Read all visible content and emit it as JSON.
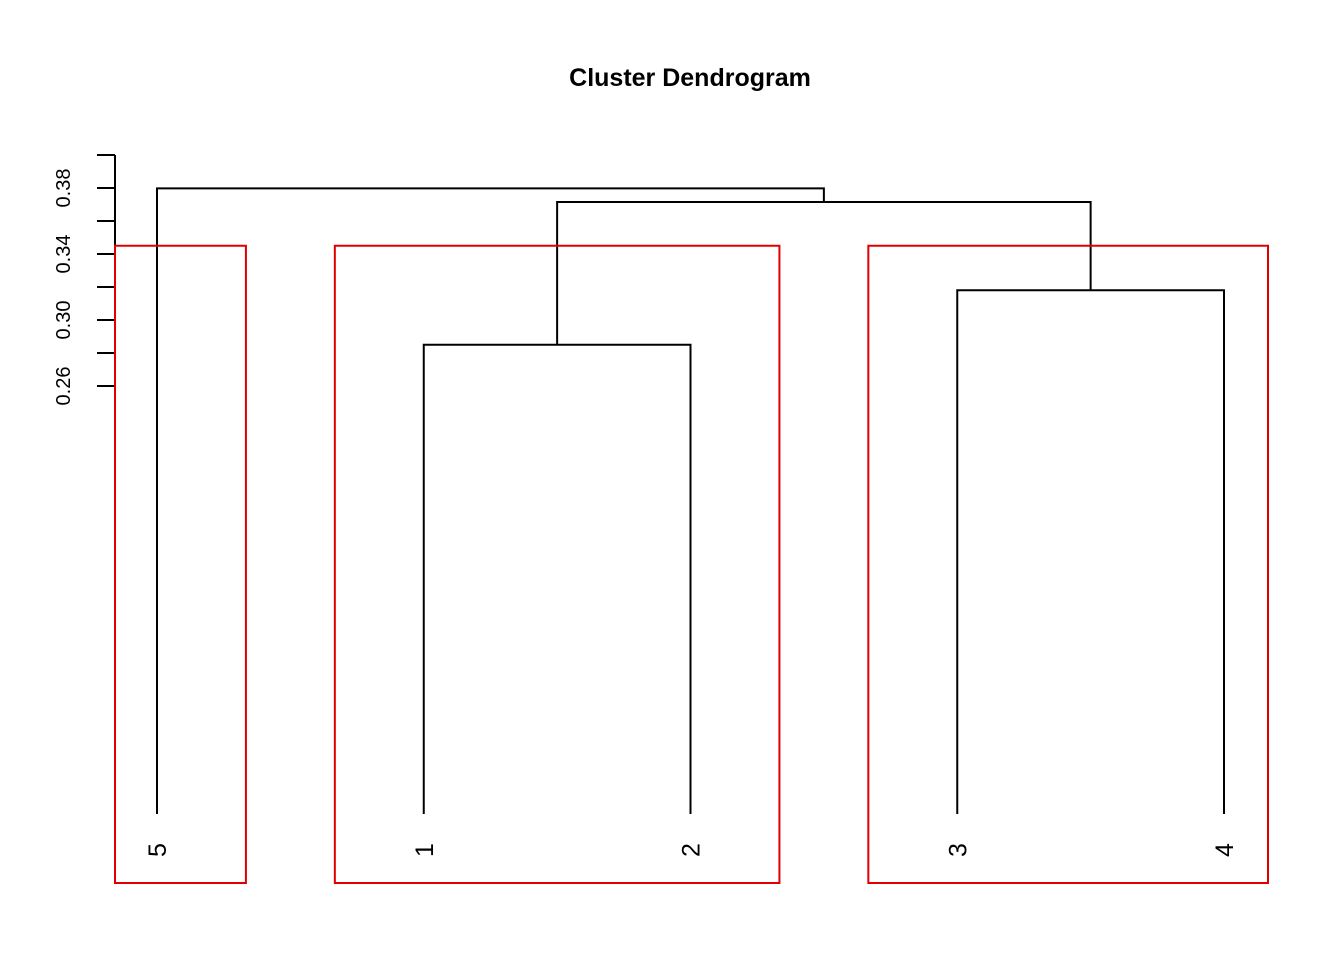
{
  "chart_data": {
    "type": "dendrogram",
    "title": "Cluster Dendrogram",
    "leaves": [
      "5",
      "1",
      "2",
      "3",
      "4"
    ],
    "merges": [
      {
        "left": "1",
        "right": "2",
        "height": 0.285
      },
      {
        "left": "3",
        "right": "4",
        "height": 0.318
      },
      {
        "left": "1-2",
        "right": "3-4",
        "height": 0.3715
      },
      {
        "left": "5",
        "right": "1-2-3-4",
        "height": 0.3798
      }
    ],
    "y_axis": {
      "ticks": [
        0.26,
        0.28,
        0.3,
        0.32,
        0.34,
        0.36,
        0.38,
        0.4
      ],
      "tick_labels": [
        "0.26",
        "0.30",
        "0.34",
        "0.38"
      ]
    },
    "cut": {
      "height": 0.345,
      "color": "#e00000",
      "groups": [
        [
          "5"
        ],
        [
          "1",
          "2"
        ],
        [
          "3",
          "4"
        ]
      ]
    },
    "line_color": "#000000"
  }
}
